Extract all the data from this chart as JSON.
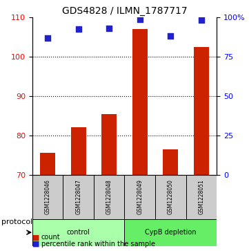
{
  "title": "GDS4828 / ILMN_1787717",
  "samples": [
    "GSM1228046",
    "GSM1228047",
    "GSM1228048",
    "GSM1228049",
    "GSM1228050",
    "GSM1228051"
  ],
  "bar_values": [
    75.5,
    82.0,
    85.5,
    107.0,
    76.5,
    102.5
  ],
  "bar_bottom": 70,
  "percentile_values": [
    87.0,
    92.5,
    93.0,
    99.0,
    88.5,
    98.5
  ],
  "bar_color": "#cc2200",
  "dot_color": "#2222cc",
  "left_ylim": [
    70,
    110
  ],
  "left_yticks": [
    70,
    80,
    90,
    100,
    110
  ],
  "right_ylim": [
    0,
    100
  ],
  "right_yticks": [
    0,
    25,
    50,
    75,
    100
  ],
  "right_yticklabels": [
    "0",
    "25",
    "50",
    "75",
    "100%"
  ],
  "grid_lines": [
    80,
    90,
    100
  ],
  "protocol_groups": [
    {
      "label": "control",
      "indices": [
        0,
        1,
        2
      ],
      "color": "#aaffaa"
    },
    {
      "label": "CypB depletion",
      "indices": [
        3,
        4,
        5
      ],
      "color": "#66ee66"
    }
  ],
  "legend_count_label": "count",
  "legend_pct_label": "percentile rank within the sample",
  "protocol_label": "protocol",
  "background_color": "#ffffff",
  "plot_bg_color": "#ffffff",
  "sample_box_color": "#cccccc"
}
